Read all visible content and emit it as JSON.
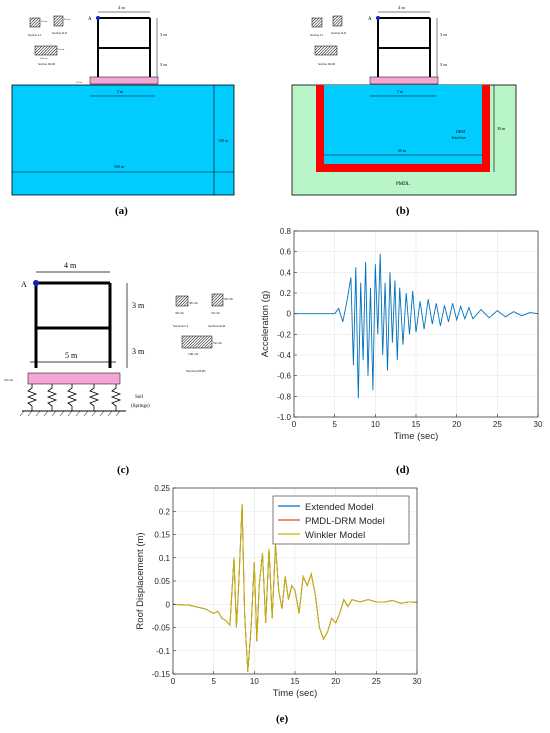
{
  "panels": {
    "a": {
      "label": "(a)",
      "dim_bay": "4 m",
      "dim_story1": "3 m",
      "dim_story2": "3 m",
      "dim_foundation": "5 m",
      "dim_depth": "100 m",
      "dim_width": "500 m",
      "dim_thickness": "50 cm",
      "point_label": "A",
      "section_labels": [
        "Section I-I",
        "Section II-II",
        "Section III-III"
      ],
      "section_dims": [
        "30 cm",
        "30 cm",
        "50 cm",
        "100 cm"
      ]
    },
    "b": {
      "label": "(b)",
      "dim_bay": "4 m",
      "dim_story1": "3 m",
      "dim_story2": "3 m",
      "dim_foundation": "5 m",
      "dim_depth": "30 m",
      "dim_width": "60 m",
      "drm_label": "DRM",
      "drm_label2": "Interface",
      "pmdl_label": "PMDL",
      "point_label": "A",
      "section_labels": [
        "Section I-I",
        "Section II-II",
        "Section III-III"
      ]
    },
    "c": {
      "label": "(c)",
      "dim_bay": "4 m",
      "dim_story1": "3 m",
      "dim_story2": "3 m",
      "dim_foundation": "5 m",
      "dim_thickness": "50 cm",
      "point_label": "A",
      "soil_label": "Soil",
      "springs_label": "(Springs)",
      "section_labels": [
        "Section I-I",
        "Section II-II",
        "Section III-III"
      ],
      "section_dims": [
        "30 cm",
        "30 cm",
        "30 cm",
        "50 cm",
        "50 cm",
        "100 cm"
      ]
    },
    "d": {
      "label": "(d)"
    },
    "e": {
      "label": "(e)"
    }
  },
  "colors": {
    "soil": "#00ccff",
    "pmdl": "#b8f5c8",
    "drm": "#ff0000",
    "foundation": "#f4a6d7",
    "extended": "#0072bd",
    "pmdl_drm": "#d95319",
    "winkler": "#c8b400"
  },
  "chart_data": [
    {
      "id": "acceleration",
      "type": "line",
      "xlabel": "Time (sec)",
      "ylabel": "Acceleration (g)",
      "xlim": [
        0,
        30
      ],
      "ylim": [
        -1.0,
        0.8
      ],
      "xticks": [
        0,
        5,
        10,
        15,
        20,
        25,
        30
      ],
      "yticks": [
        -1.0,
        -0.8,
        -0.6,
        -0.4,
        -0.2,
        0,
        0.2,
        0.4,
        0.6,
        0.8
      ],
      "series": [
        {
          "color": "#0072bd",
          "x": [
            0,
            5,
            5.5,
            6,
            6.5,
            7,
            7.3,
            7.6,
            7.9,
            8.2,
            8.5,
            8.8,
            9.1,
            9.4,
            9.7,
            10,
            10.3,
            10.6,
            10.9,
            11.2,
            11.5,
            11.8,
            12.1,
            12.4,
            12.7,
            13,
            13.4,
            13.8,
            14.2,
            14.6,
            15,
            15.5,
            16,
            16.5,
            17,
            17.5,
            18,
            18.5,
            19,
            19.5,
            20,
            20.5,
            21,
            21.5,
            22,
            23,
            24,
            25,
            26,
            27,
            28,
            29,
            30
          ],
          "y": [
            0,
            0,
            0.05,
            -0.08,
            0.12,
            0.35,
            -0.5,
            0.45,
            -0.82,
            0.3,
            -0.45,
            0.5,
            -0.6,
            0.25,
            -0.74,
            0.48,
            -0.2,
            0.58,
            -0.4,
            0.3,
            -0.55,
            0.4,
            -0.28,
            0.32,
            -0.45,
            0.25,
            -0.3,
            0.2,
            -0.2,
            0.22,
            -0.18,
            0.12,
            -0.15,
            0.14,
            -0.1,
            0.1,
            -0.12,
            0.08,
            -0.08,
            0.1,
            -0.06,
            0.07,
            -0.05,
            0.06,
            -0.05,
            0.04,
            -0.04,
            0.03,
            -0.03,
            0.02,
            -0.02,
            0.01,
            0
          ]
        }
      ]
    },
    {
      "id": "roof-displacement",
      "type": "line",
      "xlabel": "Time (sec)",
      "ylabel": "Roof Displacement (m)",
      "xlim": [
        0,
        30
      ],
      "ylim": [
        -0.15,
        0.25
      ],
      "xticks": [
        0,
        5,
        10,
        15,
        20,
        25,
        30
      ],
      "yticks": [
        -0.15,
        -0.1,
        -0.05,
        0,
        0.05,
        0.1,
        0.15,
        0.2,
        0.25
      ],
      "legend_position": "top-right",
      "series": [
        {
          "name": "Extended Model",
          "color": "#0072bd",
          "x": [
            0,
            2,
            4,
            5,
            5.5,
            6,
            6.5,
            7,
            7.5,
            7.8,
            8.1,
            8.5,
            8.8,
            9.2,
            9.6,
            10,
            10.3,
            10.6,
            11,
            11.4,
            11.8,
            12.2,
            12.6,
            13,
            13.4,
            13.8,
            14.2,
            14.6,
            15,
            15.5,
            16,
            16.5,
            17,
            17.5,
            18,
            18.5,
            19,
            19.5,
            20,
            20.5,
            21,
            21.5,
            22,
            23,
            24,
            25,
            26,
            27,
            28,
            29,
            30
          ],
          "y": [
            0,
            -0.002,
            -0.01,
            -0.02,
            -0.015,
            -0.03,
            -0.035,
            -0.045,
            0.1,
            -0.05,
            0.05,
            0.215,
            -0.02,
            -0.145,
            -0.05,
            0.09,
            -0.08,
            0.04,
            0.11,
            -0.04,
            0.12,
            -0.03,
            0.13,
            0.03,
            -0.01,
            0.06,
            0.01,
            0.04,
            0.03,
            -0.02,
            0.06,
            0.04,
            0.065,
            0.02,
            -0.05,
            -0.075,
            -0.06,
            -0.03,
            -0.04,
            -0.02,
            0.01,
            -0.005,
            0.01,
            0.005,
            0.01,
            0.005,
            0.005,
            0.008,
            0.002,
            0.005,
            0.004
          ]
        },
        {
          "name": "PMDL-DRM Model",
          "color": "#d95319",
          "x": [
            0,
            2,
            4,
            5,
            5.5,
            6,
            6.5,
            7,
            7.5,
            7.8,
            8.1,
            8.5,
            8.8,
            9.2,
            9.6,
            10,
            10.3,
            10.6,
            11,
            11.4,
            11.8,
            12.2,
            12.6,
            13,
            13.4,
            13.8,
            14.2,
            14.6,
            15,
            15.5,
            16,
            16.5,
            17,
            17.5,
            18,
            18.5,
            19,
            19.5,
            20,
            20.5,
            21,
            21.5,
            22,
            23,
            24,
            25,
            26,
            27,
            28,
            29,
            30
          ],
          "y": [
            0,
            -0.002,
            -0.01,
            -0.02,
            -0.015,
            -0.03,
            -0.035,
            -0.045,
            0.1,
            -0.05,
            0.05,
            0.215,
            -0.02,
            -0.145,
            -0.05,
            0.09,
            -0.08,
            0.04,
            0.11,
            -0.04,
            0.12,
            -0.03,
            0.13,
            0.03,
            -0.01,
            0.06,
            0.01,
            0.04,
            0.03,
            -0.02,
            0.06,
            0.04,
            0.065,
            0.02,
            -0.05,
            -0.075,
            -0.06,
            -0.03,
            -0.04,
            -0.02,
            0.01,
            -0.005,
            0.01,
            0.005,
            0.01,
            0.005,
            0.005,
            0.008,
            0.002,
            0.005,
            0.004
          ]
        },
        {
          "name": "Winkler Model",
          "color": "#c8b400",
          "x": [
            0,
            2,
            4,
            5,
            5.5,
            6,
            6.5,
            7,
            7.5,
            7.8,
            8.1,
            8.5,
            8.8,
            9.2,
            9.6,
            10,
            10.3,
            10.6,
            11,
            11.4,
            11.8,
            12.2,
            12.6,
            13,
            13.4,
            13.8,
            14.2,
            14.6,
            15,
            15.5,
            16,
            16.5,
            17,
            17.5,
            18,
            18.5,
            19,
            19.5,
            20,
            20.5,
            21,
            21.5,
            22,
            23,
            24,
            25,
            26,
            27,
            28,
            29,
            30
          ],
          "y": [
            0,
            -0.002,
            -0.01,
            -0.02,
            -0.015,
            -0.03,
            -0.035,
            -0.045,
            0.1,
            -0.05,
            0.05,
            0.215,
            -0.02,
            -0.145,
            -0.05,
            0.09,
            -0.08,
            0.04,
            0.11,
            -0.04,
            0.12,
            -0.03,
            0.13,
            0.03,
            -0.01,
            0.06,
            0.01,
            0.04,
            0.03,
            -0.02,
            0.06,
            0.04,
            0.065,
            0.02,
            -0.05,
            -0.075,
            -0.06,
            -0.03,
            -0.04,
            -0.02,
            0.01,
            -0.005,
            0.01,
            0.005,
            0.01,
            0.005,
            0.005,
            0.008,
            0.002,
            0.005,
            0.004
          ]
        }
      ]
    }
  ]
}
